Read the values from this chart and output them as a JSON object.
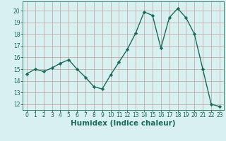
{
  "x": [
    0,
    1,
    2,
    3,
    4,
    5,
    6,
    7,
    8,
    9,
    10,
    11,
    12,
    13,
    14,
    15,
    16,
    17,
    18,
    19,
    20,
    21,
    22,
    23
  ],
  "y": [
    14.6,
    15.0,
    14.8,
    15.1,
    15.5,
    15.8,
    15.0,
    14.3,
    13.5,
    13.3,
    14.5,
    15.6,
    16.7,
    18.1,
    19.9,
    19.6,
    16.8,
    19.4,
    20.2,
    19.4,
    18.0,
    15.0,
    12.0,
    11.8
  ],
  "line_color": "#1a6b5a",
  "marker": "D",
  "marker_size": 2.2,
  "bg_color": "#d9f0f0",
  "grid_color": "#c0a0a0",
  "xlabel": "Humidex (Indice chaleur)",
  "ylim": [
    11.5,
    20.8
  ],
  "xlim": [
    -0.5,
    23.5
  ],
  "yticks": [
    12,
    13,
    14,
    15,
    16,
    17,
    18,
    19,
    20
  ],
  "xticks": [
    0,
    1,
    2,
    3,
    4,
    5,
    6,
    7,
    8,
    9,
    10,
    11,
    12,
    13,
    14,
    15,
    16,
    17,
    18,
    19,
    20,
    21,
    22,
    23
  ],
  "tick_fontsize": 5.5,
  "xlabel_fontsize": 7.5,
  "linewidth": 1.0
}
